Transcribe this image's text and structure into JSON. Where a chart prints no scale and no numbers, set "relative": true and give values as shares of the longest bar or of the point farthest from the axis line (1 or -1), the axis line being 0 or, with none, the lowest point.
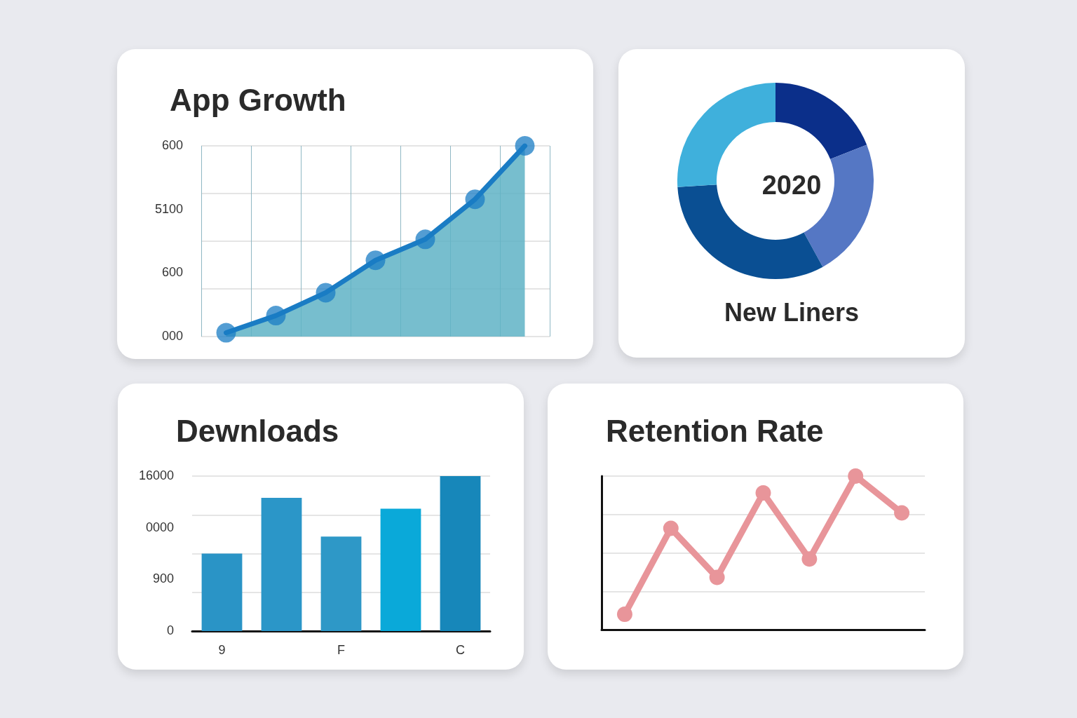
{
  "chart_data": [
    {
      "type": "area",
      "title": "App Growth",
      "relative": true,
      "categories": [
        null,
        null,
        null,
        null,
        null,
        null,
        null
      ],
      "values": [
        0.02,
        0.11,
        0.23,
        0.4,
        0.51,
        0.72,
        1
      ],
      "color": "#1a7cc4",
      "marker": "circle",
      "line_style": "solid",
      "grid": true,
      "tick_labels": false,
      "annotations": [
        "600",
        "5100",
        "600",
        "000"
      ]
    },
    {
      "type": "donut",
      "title": "New Liners",
      "annotations": [
        "2020"
      ],
      "categories": [
        null,
        null,
        null,
        null
      ],
      "values": [
        19,
        23,
        32,
        26
      ],
      "colors": [
        "#0b2f8a",
        "#5577c4",
        "#0a4f93",
        "#3fb0dc"
      ]
    },
    {
      "type": "bar",
      "title": "Dewnloads",
      "relative": true,
      "categories": [
        "9",
        null,
        "F",
        null,
        "C"
      ],
      "values": [
        0.5,
        0.86,
        0.61,
        0.79,
        1
      ],
      "colors": [
        "#2a94c6",
        "#2b96c8",
        "#2e98c7",
        "#0aa9d9",
        "#1787ba"
      ],
      "grid": "y",
      "tick_labels": "x",
      "annotations": [
        "16000",
        "0000",
        "900",
        "0"
      ]
    },
    {
      "type": "line",
      "title": "Retention Rate",
      "relative": true,
      "categories": [
        null,
        null,
        null,
        null,
        null,
        null,
        null
      ],
      "values": [
        0.1,
        0.66,
        0.34,
        0.89,
        0.46,
        1,
        0.76
      ],
      "color": "#e8959a",
      "marker": "circle",
      "line_style": "solid",
      "grid": "y",
      "tick_labels": false
    }
  ]
}
